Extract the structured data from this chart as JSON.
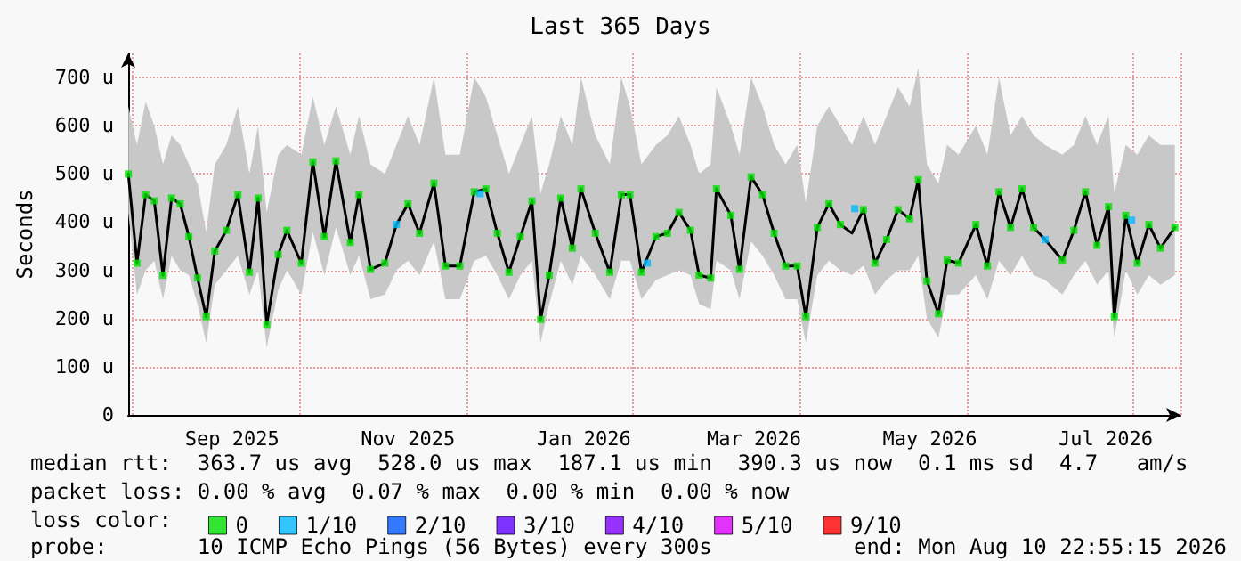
{
  "chart_data": {
    "type": "line",
    "title": "Last 365 Days",
    "ylabel": "Seconds",
    "legend_title": "loss color:",
    "annotations": [
      "median rtt:  363.7 us avg  528.0 us max  187.1 us min  390.3 us now  0.1 ms sd  4.7   am/s",
      "packet loss: 0.00 % avg  0.07 % max  0.00 % min  0.00 % now",
      "probe:       10 ICMP Echo Pings (56 Bytes) every 300s",
      "end: Mon Aug 10 22:55:15 2026"
    ],
    "xlim": [
      "2025-08-10T22:55",
      "2026-08-10T22:55"
    ],
    "xticks": [
      {
        "value": "2025-09-16",
        "label": "Sep 2025"
      },
      {
        "value": "2025-11-16",
        "label": "Nov 2025"
      },
      {
        "value": "2026-01-16",
        "label": "Jan 2026"
      },
      {
        "value": "2026-03-16",
        "label": "Mar 2026"
      },
      {
        "value": "2026-05-16",
        "label": "May 2026"
      },
      {
        "value": "2026-07-16",
        "label": "Jul 2026"
      }
    ],
    "ylim": [
      0,
      750
    ],
    "yticks": [
      0,
      {
        "value": 100,
        "label": "100 u"
      },
      {
        "value": 200,
        "label": "200 u"
      },
      {
        "value": 300,
        "label": "300 u"
      },
      {
        "value": 400,
        "label": "400 u"
      },
      {
        "value": 500,
        "label": "500 u"
      },
      {
        "value": 600,
        "label": "600 u"
      },
      {
        "value": 700,
        "label": "700 u"
      }
    ],
    "grid": true,
    "legend": "bottom left",
    "series": [
      {
        "color": "#000000",
        "marker": "none",
        "x": [
          "2025-08-11",
          "2025-08-14",
          "2025-08-17",
          "2025-08-20",
          "2025-08-23",
          "2025-08-26",
          "2025-08-29",
          "2025-09-01",
          "2025-09-04",
          "2025-09-07",
          "2025-09-10",
          "2025-09-14",
          "2025-09-18",
          "2025-09-22",
          "2025-09-25",
          "2025-09-28",
          "2025-10-02",
          "2025-10-05",
          "2025-10-10",
          "2025-10-14",
          "2025-10-18",
          "2025-10-22",
          "2025-10-27",
          "2025-10-30",
          "2025-11-03",
          "2025-11-08",
          "2025-11-12",
          "2025-11-16",
          "2025-11-20",
          "2025-11-25",
          "2025-11-29",
          "2025-12-04",
          "2025-12-09",
          "2025-12-13",
          "2025-12-17",
          "2025-12-21",
          "2025-12-25",
          "2025-12-29",
          "2026-01-01",
          "2026-01-04",
          "2026-01-08",
          "2026-01-12",
          "2026-01-15",
          "2026-01-20",
          "2026-01-25",
          "2026-01-29",
          "2026-02-01",
          "2026-02-05",
          "2026-02-10",
          "2026-02-14",
          "2026-02-18",
          "2026-02-22",
          "2026-02-25",
          "2026-03-01",
          "2026-03-03",
          "2026-03-08",
          "2026-03-11",
          "2026-03-15",
          "2026-03-19",
          "2026-03-23",
          "2026-03-27",
          "2026-03-31",
          "2026-04-03",
          "2026-04-07",
          "2026-04-11",
          "2026-04-15",
          "2026-04-19",
          "2026-04-23",
          "2026-04-27",
          "2026-05-01",
          "2026-05-05",
          "2026-05-09",
          "2026-05-12",
          "2026-05-15",
          "2026-05-19",
          "2026-05-22",
          "2026-05-26",
          "2026-06-01",
          "2026-06-05",
          "2026-06-09",
          "2026-06-13",
          "2026-06-17",
          "2026-06-21",
          "2026-06-25",
          "2026-07-01",
          "2026-07-05",
          "2026-07-09",
          "2026-07-13",
          "2026-07-17",
          "2026-07-19",
          "2026-07-23",
          "2026-07-27",
          "2026-07-31",
          "2026-08-04",
          "2026-08-09"
        ],
        "values": [
          500,
          315,
          457,
          444,
          290,
          450,
          438,
          370,
          284,
          204,
          340,
          383,
          457,
          296,
          450,
          188,
          333,
          383,
          315,
          525,
          370,
          527,
          358,
          457,
          302,
          315,
          395,
          438,
          377,
          481,
          309,
          309,
          463,
          469,
          377,
          296,
          370,
          444,
          198,
          290,
          450,
          346,
          469,
          377,
          296,
          457,
          457,
          296,
          370,
          377,
          420,
          383,
          290,
          284,
          469,
          414,
          302,
          494,
          457,
          377,
          309,
          309,
          204,
          389,
          438,
          395,
          377,
          426,
          315,
          364,
          426,
          407,
          488,
          278,
          210,
          321,
          315,
          395,
          309,
          463,
          389,
          469,
          389,
          364,
          321,
          383,
          463,
          352,
          432,
          204,
          414,
          315,
          395,
          346,
          389
        ],
        "lower": [
          420,
          250,
          300,
          320,
          240,
          330,
          300,
          290,
          230,
          150,
          270,
          300,
          330,
          250,
          300,
          140,
          260,
          300,
          250,
          380,
          290,
          390,
          290,
          330,
          240,
          250,
          300,
          320,
          290,
          360,
          240,
          240,
          320,
          330,
          290,
          240,
          290,
          320,
          150,
          230,
          320,
          270,
          330,
          290,
          240,
          320,
          320,
          240,
          280,
          290,
          300,
          290,
          230,
          220,
          320,
          300,
          240,
          360,
          330,
          290,
          240,
          240,
          150,
          290,
          320,
          300,
          290,
          310,
          250,
          280,
          300,
          300,
          330,
          200,
          160,
          250,
          250,
          290,
          240,
          320,
          290,
          330,
          290,
          280,
          250,
          290,
          320,
          270,
          300,
          160,
          300,
          250,
          290,
          270,
          290
        ],
        "upper": [
          640,
          560,
          650,
          600,
          520,
          580,
          560,
          520,
          480,
          380,
          520,
          560,
          640,
          500,
          600,
          420,
          540,
          560,
          540,
          660,
          560,
          640,
          540,
          620,
          520,
          500,
          560,
          620,
          560,
          700,
          540,
          540,
          700,
          660,
          580,
          500,
          560,
          620,
          460,
          520,
          620,
          560,
          700,
          580,
          520,
          700,
          640,
          520,
          560,
          580,
          620,
          560,
          500,
          520,
          680,
          600,
          540,
          700,
          640,
          560,
          520,
          560,
          440,
          600,
          640,
          600,
          560,
          620,
          560,
          620,
          680,
          640,
          720,
          520,
          480,
          560,
          540,
          600,
          540,
          700,
          580,
          620,
          580,
          560,
          540,
          560,
          620,
          560,
          620,
          460,
          560,
          540,
          580,
          560,
          560
        ]
      },
      {
        "type": "scatter",
        "name": "0",
        "color": "#00e000",
        "marker": "square",
        "x": [
          "2025-08-11",
          "2025-08-14",
          "2025-08-17",
          "2025-08-20",
          "2025-08-23",
          "2025-08-26",
          "2025-08-29",
          "2025-09-01",
          "2025-09-04",
          "2025-09-07",
          "2025-09-10",
          "2025-09-14",
          "2025-09-18",
          "2025-09-22",
          "2025-09-25",
          "2025-09-28",
          "2025-10-02",
          "2025-10-05",
          "2025-10-10",
          "2025-10-14",
          "2025-10-18",
          "2025-10-22",
          "2025-10-27",
          "2025-10-30",
          "2025-11-03",
          "2025-11-08",
          "2025-11-16",
          "2025-11-20",
          "2025-11-25",
          "2025-11-29",
          "2025-12-04",
          "2025-12-09",
          "2025-12-13",
          "2025-12-17",
          "2025-12-21",
          "2025-12-25",
          "2025-12-29",
          "2026-01-01",
          "2026-01-04",
          "2026-01-08",
          "2026-01-12",
          "2026-01-15",
          "2026-01-20",
          "2026-01-25",
          "2026-01-29",
          "2026-02-01",
          "2026-02-05",
          "2026-02-10",
          "2026-02-14",
          "2026-02-18",
          "2026-02-22",
          "2026-02-25",
          "2026-03-01",
          "2026-03-03",
          "2026-03-08",
          "2026-03-11",
          "2026-03-15",
          "2026-03-19",
          "2026-03-23",
          "2026-03-27",
          "2026-03-31",
          "2026-04-03",
          "2026-04-07",
          "2026-04-11",
          "2026-04-15",
          "2026-04-23",
          "2026-04-27",
          "2026-05-01",
          "2026-05-05",
          "2026-05-09",
          "2026-05-12",
          "2026-05-15",
          "2026-05-19",
          "2026-05-22",
          "2026-05-26",
          "2026-06-01",
          "2026-06-05",
          "2026-06-09",
          "2026-06-13",
          "2026-06-17",
          "2026-06-21",
          "2026-07-01",
          "2026-07-05",
          "2026-07-09",
          "2026-07-13",
          "2026-07-17",
          "2026-07-19",
          "2026-07-23",
          "2026-07-27",
          "2026-07-31",
          "2026-08-04",
          "2026-08-09"
        ],
        "values": [
          500,
          315,
          457,
          444,
          290,
          450,
          438,
          370,
          284,
          204,
          340,
          383,
          457,
          296,
          450,
          188,
          333,
          383,
          315,
          525,
          370,
          527,
          358,
          457,
          302,
          315,
          438,
          377,
          481,
          309,
          309,
          463,
          469,
          377,
          296,
          370,
          444,
          198,
          290,
          450,
          346,
          469,
          377,
          296,
          457,
          457,
          296,
          370,
          377,
          420,
          383,
          290,
          284,
          469,
          414,
          302,
          494,
          457,
          377,
          309,
          309,
          204,
          389,
          438,
          395,
          426,
          315,
          364,
          426,
          407,
          488,
          278,
          210,
          321,
          315,
          395,
          309,
          463,
          389,
          469,
          389,
          321,
          383,
          463,
          352,
          432,
          204,
          414,
          315,
          395,
          346,
          389
        ]
      },
      {
        "type": "scatter",
        "name": "1/10",
        "color": "#00b8ff",
        "marker": "square",
        "x": [
          "2025-11-12",
          "2025-12-11",
          "2026-02-07",
          "2026-04-20",
          "2026-06-25",
          "2026-07-25"
        ],
        "values": [
          395,
          459,
          315,
          428,
          364,
          404
        ]
      },
      {
        "type": "scatter",
        "name": "2/10",
        "color": "#0059ff",
        "marker": "square"
      },
      {
        "type": "scatter",
        "name": "3/10",
        "color": "#5e00ff",
        "marker": "square"
      },
      {
        "type": "scatter",
        "name": "4/10",
        "color": "#7e00ff",
        "marker": "square"
      },
      {
        "type": "scatter",
        "name": "5/10",
        "color": "#dd00ff",
        "marker": "square"
      },
      {
        "type": "scatter",
        "name": "9/10",
        "color": "#ff0000",
        "marker": "square"
      }
    ]
  }
}
